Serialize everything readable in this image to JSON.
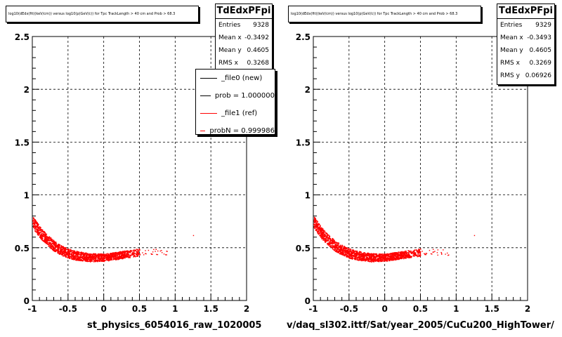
{
  "chart_data": [
    {
      "type": "scatter",
      "title": "log10(dEdx(fit)(keV/cm)) versus log10(p(GeV/c)) for Tpc TrackLength > 40 cm and Prob > 68.3",
      "xlabel": "st_physics_6054016_raw_1020005",
      "ylabel": "",
      "xlim": [
        -1,
        2
      ],
      "ylim": [
        0,
        2.5
      ],
      "x_ticks": [
        "-1",
        "-0.5",
        "0",
        "0.5",
        "1",
        "1.5",
        "2"
      ],
      "y_ticks": [
        "0",
        "0.5",
        "1",
        "1.5",
        "2",
        "2.5"
      ],
      "grid": true,
      "series": [
        {
          "name": "_file0 (new)",
          "color": "#000000",
          "values": []
        },
        {
          "name": "_file1 (ref)",
          "color": "#ff0000",
          "x": [
            -1.0,
            -0.9,
            -0.8,
            -0.7,
            -0.6,
            -0.5,
            -0.4,
            -0.3,
            -0.2,
            -0.1,
            0.0,
            0.1,
            0.2,
            0.3,
            0.4,
            0.5
          ],
          "y": [
            0.75,
            0.65,
            0.58,
            0.52,
            0.48,
            0.45,
            0.43,
            0.42,
            0.41,
            0.41,
            0.41,
            0.42,
            0.43,
            0.44,
            0.45,
            0.46
          ]
        }
      ],
      "stats": {
        "name": "TdEdxPFpi",
        "rows": [
          {
            "label": "Entries",
            "value": "9328"
          },
          {
            "label": "Mean x",
            "value": "-0.3492"
          },
          {
            "label": "Mean y",
            "value": "0.4605"
          },
          {
            "label": "RMS x",
            "value": "0.3268"
          }
        ]
      },
      "legend": [
        {
          "label": "_file0 (new)",
          "color": "#000000"
        },
        {
          "label": "prob = 1.000000",
          "color": "#000000"
        },
        {
          "label": "_file1 (ref)",
          "color": "#ff0000"
        },
        {
          "label": "probN = 0.999986",
          "color": "#ff0000"
        }
      ]
    },
    {
      "type": "scatter",
      "title": "log10(dEdx(fit)(keV/cm)) versus log10(p(GeV/c)) for Tpc TrackLength > 40 cm and Prob > 68.3",
      "xlabel": "v/daq_sl302.ittf/Sat/year_2005/CuCu200_HighTower/",
      "ylabel": "",
      "xlim": [
        -1,
        2
      ],
      "ylim": [
        0,
        2.5
      ],
      "x_ticks": [
        "-1",
        "-0.5",
        "0",
        "0.5",
        "1",
        "1.5",
        "2"
      ],
      "y_ticks": [
        "0",
        "0.5",
        "1",
        "1.5",
        "2",
        "2.5"
      ],
      "grid": true,
      "series": [
        {
          "color": "#ff0000",
          "x": [
            -1.0,
            -0.9,
            -0.8,
            -0.7,
            -0.6,
            -0.5,
            -0.4,
            -0.3,
            -0.2,
            -0.1,
            0.0,
            0.1,
            0.2,
            0.3,
            0.4,
            0.5
          ],
          "y": [
            0.75,
            0.65,
            0.58,
            0.52,
            0.48,
            0.45,
            0.43,
            0.42,
            0.41,
            0.41,
            0.41,
            0.42,
            0.43,
            0.44,
            0.45,
            0.46
          ]
        }
      ],
      "stats": {
        "name": "TdEdxPFpi",
        "rows": [
          {
            "label": "Entries",
            "value": "9329"
          },
          {
            "label": "Mean x",
            "value": "-0.3493"
          },
          {
            "label": "Mean y",
            "value": "0.4605"
          },
          {
            "label": "RMS x",
            "value": "0.3269"
          },
          {
            "label": "RMS y",
            "value": "0.06926"
          }
        ]
      }
    }
  ]
}
